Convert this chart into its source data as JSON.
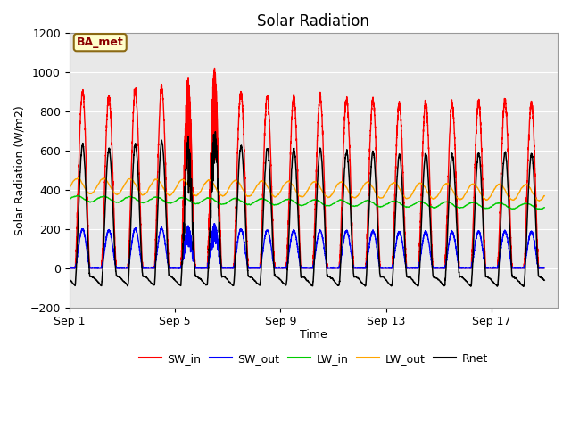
{
  "title": "Solar Radiation",
  "xlabel": "Time",
  "ylabel": "Solar Radiation (W/m2)",
  "ylim": [
    -200,
    1200
  ],
  "xlim_days": 18.5,
  "xtick_days": [
    0,
    4,
    8,
    12,
    16
  ],
  "xtick_labels": [
    "Sep 1",
    "Sep 5",
    "Sep 9",
    "Sep 13",
    "Sep 17"
  ],
  "annotation": "BA_met",
  "bg_color": "#e8e8e8",
  "legend_items": [
    {
      "label": "SW_in",
      "color": "#ff0000"
    },
    {
      "label": "SW_out",
      "color": "#0000ff"
    },
    {
      "label": "LW_in",
      "color": "#00cc00"
    },
    {
      "label": "LW_out",
      "color": "#ffa500"
    },
    {
      "label": "Rnet",
      "color": "#000000"
    }
  ],
  "n_days": 18,
  "points_per_day": 288,
  "SW_in_peaks": [
    900,
    875,
    905,
    920,
    960,
    1000,
    900,
    880,
    875,
    870,
    860,
    860,
    835,
    850,
    840,
    850,
    855,
    840
  ],
  "SW_out_scale": 0.22,
  "LW_in_base": 345,
  "LW_in_range": [
    310,
    380
  ],
  "LW_out_base": 390,
  "LW_out_range": [
    360,
    450
  ],
  "Rnet_night": -80
}
